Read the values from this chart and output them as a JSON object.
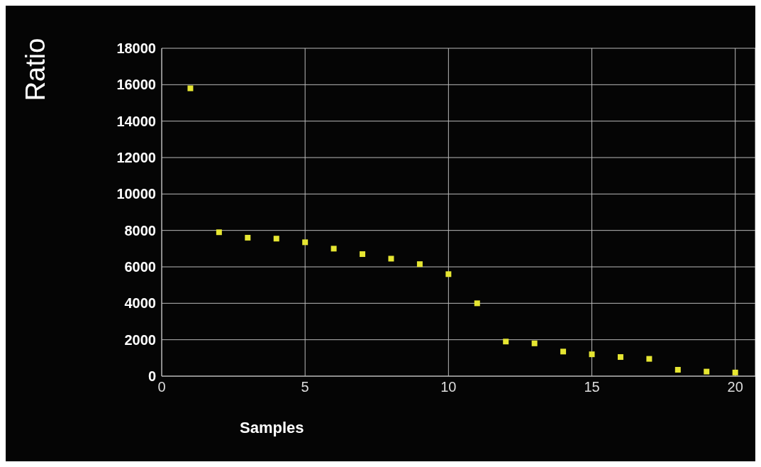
{
  "chart_data": {
    "type": "scatter",
    "ylabel": "Ratio",
    "xlabel": "Samples",
    "x": [
      1,
      2,
      3,
      4,
      5,
      6,
      7,
      8,
      9,
      10,
      11,
      12,
      13,
      14,
      15,
      16,
      17,
      18,
      19,
      20
    ],
    "series": [
      {
        "color": "#e6e632",
        "values": [
          15800,
          7900,
          7600,
          7550,
          7350,
          7000,
          6700,
          6450,
          6150,
          5600,
          4000,
          1900,
          1800,
          1350,
          1200,
          1050,
          950,
          350,
          250,
          200
        ]
      }
    ],
    "xlim": [
      0,
      20.7
    ],
    "xticks": [
      0,
      5,
      10,
      15,
      20
    ],
    "ylim": [
      0,
      18000
    ],
    "yticks": [
      0,
      2000,
      4000,
      6000,
      8000,
      10000,
      12000,
      14000,
      16000,
      18000
    ],
    "grid": true,
    "marker": "square"
  }
}
